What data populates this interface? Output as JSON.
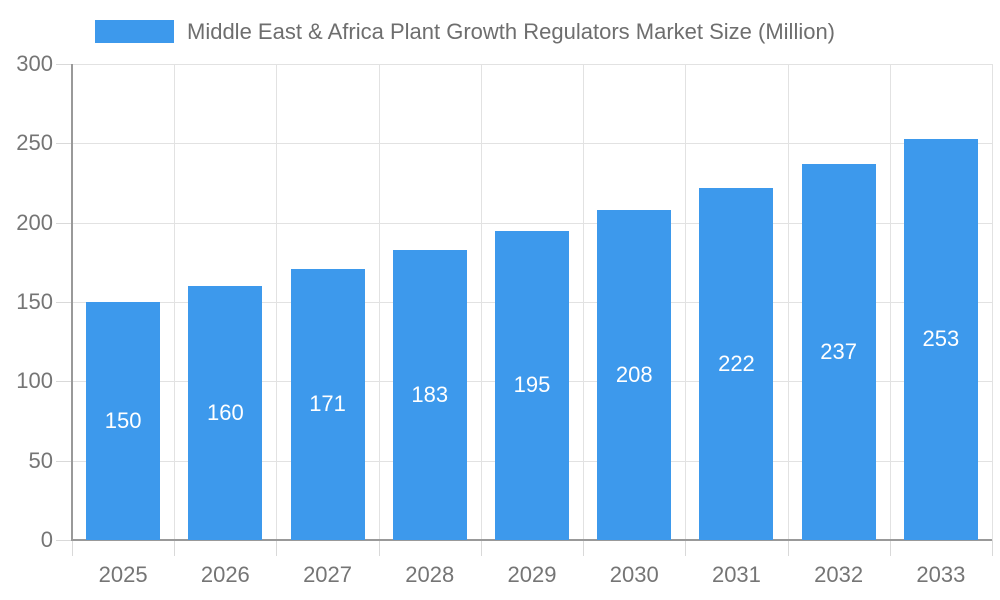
{
  "chart_data": {
    "type": "bar",
    "title": "Middle East & Africa Plant Growth Regulators Market Size (Million)",
    "categories": [
      "2025",
      "2026",
      "2027",
      "2028",
      "2029",
      "2030",
      "2031",
      "2032",
      "2033"
    ],
    "values": [
      150,
      160,
      171,
      183,
      195,
      208,
      222,
      237,
      253
    ],
    "xlabel": "",
    "ylabel": "",
    "ylim": [
      0,
      300
    ],
    "ytick_step": 50,
    "ytick_labels": [
      "0",
      "50",
      "100",
      "150",
      "200",
      "250",
      "300"
    ],
    "grid": true,
    "legend_position": "top",
    "colors": {
      "bar": "#3D99EC",
      "value_label": "#FFFFFF",
      "grid": "#E2E2E2",
      "tick": "#D9D9D9",
      "axis_line": "#999999",
      "axis_text": "#757575",
      "title_text": "#6E6E6E",
      "background": "#FFFFFF"
    }
  }
}
